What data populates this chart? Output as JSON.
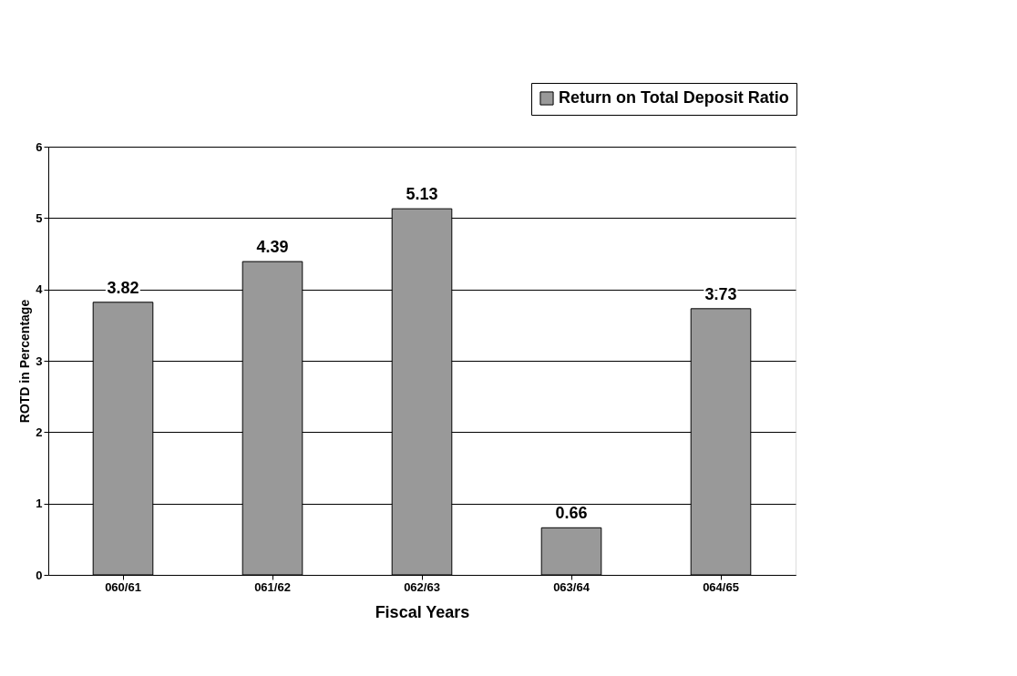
{
  "chart_data": {
    "type": "bar",
    "xlabel": "Fiscal Years",
    "ylabel": "ROTD in Percentage",
    "categories": [
      "060/61",
      "061/62",
      "062/63",
      "063/64",
      "064/65"
    ],
    "series": [
      {
        "name": "Return on Total Deposit Ratio",
        "color": "#999999",
        "values": [
          3.82,
          4.39,
          5.13,
          0.66,
          3.73
        ]
      }
    ],
    "ylim": [
      0,
      6
    ],
    "yticks": [
      0,
      1,
      2,
      3,
      4,
      5,
      6
    ],
    "grid": "y",
    "legend": "top right",
    "data_labels": true
  }
}
